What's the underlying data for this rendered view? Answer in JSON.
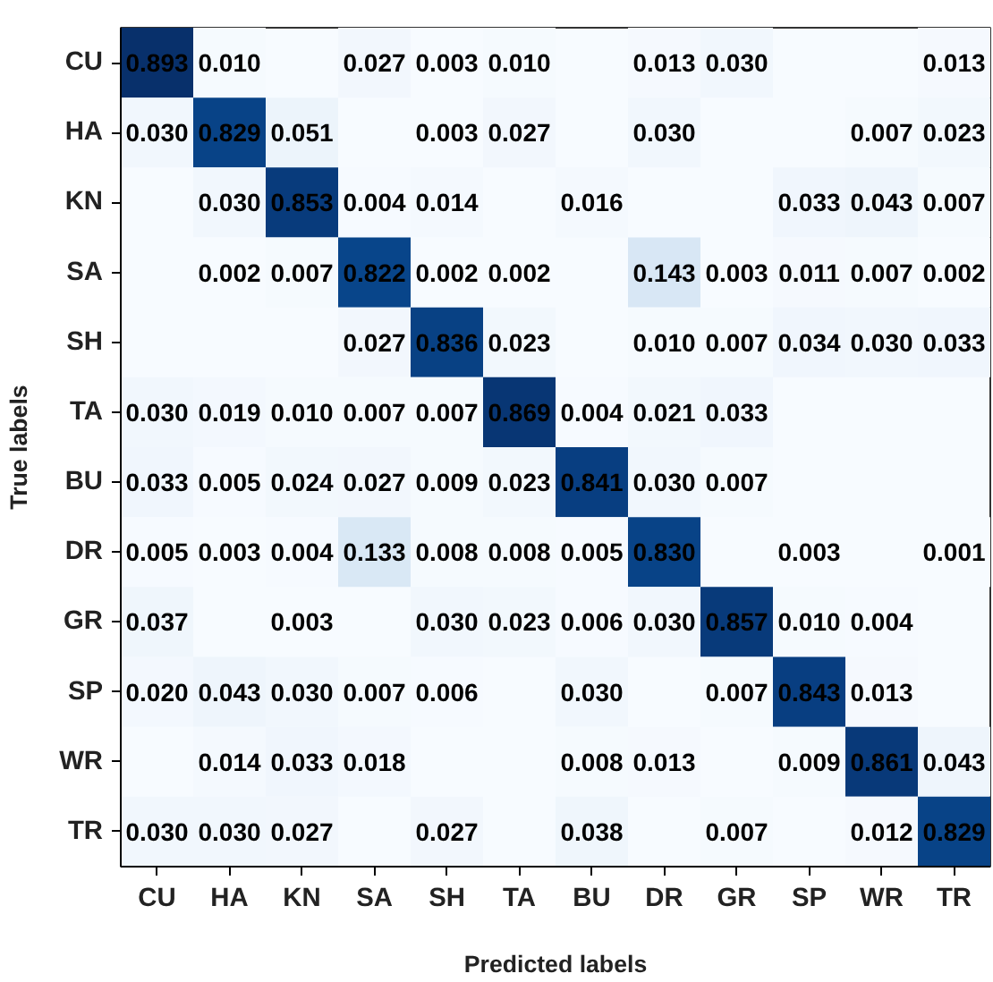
{
  "chart_data": {
    "type": "heatmap",
    "xlabel": "Predicted labels",
    "ylabel": "True labels",
    "categories": [
      "CU",
      "HA",
      "KN",
      "SA",
      "SH",
      "TA",
      "BU",
      "DR",
      "GR",
      "SP",
      "WR",
      "TR"
    ],
    "y_categories": [
      "CU",
      "HA",
      "KN",
      "SA",
      "SH",
      "TA",
      "BU",
      "DR",
      "GR",
      "SP",
      "WR",
      "TR"
    ],
    "cells": [
      [
        0.893,
        0.01,
        null,
        0.027,
        0.003,
        0.01,
        null,
        0.013,
        0.03,
        null,
        null,
        0.013
      ],
      [
        0.03,
        0.829,
        0.051,
        null,
        0.003,
        0.027,
        null,
        0.03,
        null,
        null,
        0.007,
        0.023
      ],
      [
        null,
        0.03,
        0.853,
        0.004,
        0.014,
        null,
        0.016,
        null,
        null,
        0.033,
        0.043,
        0.007
      ],
      [
        null,
        0.002,
        0.007,
        0.822,
        0.002,
        0.002,
        null,
        0.143,
        0.003,
        0.011,
        0.007,
        0.002
      ],
      [
        null,
        null,
        null,
        0.027,
        0.836,
        0.023,
        null,
        0.01,
        0.007,
        0.034,
        0.03,
        0.033
      ],
      [
        0.03,
        0.019,
        0.01,
        0.007,
        0.007,
        0.869,
        0.004,
        0.021,
        0.033,
        null,
        null,
        null
      ],
      [
        0.033,
        0.005,
        0.024,
        0.027,
        0.009,
        0.023,
        0.841,
        0.03,
        0.007,
        null,
        null,
        null
      ],
      [
        0.005,
        0.003,
        0.004,
        0.133,
        0.008,
        0.008,
        0.005,
        0.83,
        null,
        0.003,
        null,
        0.001
      ],
      [
        0.037,
        null,
        0.003,
        null,
        0.03,
        0.023,
        0.006,
        0.03,
        0.857,
        0.01,
        0.004,
        null
      ],
      [
        0.02,
        0.043,
        0.03,
        0.007,
        0.006,
        null,
        0.03,
        null,
        0.007,
        0.843,
        0.013,
        null
      ],
      [
        null,
        0.014,
        0.033,
        0.018,
        null,
        null,
        0.008,
        0.013,
        null,
        0.009,
        0.861,
        0.043
      ],
      [
        0.03,
        0.03,
        0.027,
        null,
        0.027,
        null,
        0.038,
        null,
        0.007,
        null,
        0.012,
        0.829
      ]
    ],
    "cell_labels": [
      [
        "0.893",
        "0.010",
        null,
        "0.027",
        "0.003",
        "0.010",
        null,
        "0.013",
        "0.030",
        null,
        null,
        "0.013"
      ],
      [
        "0.030",
        "0.829",
        "0.051",
        null,
        "0.003",
        "0.027",
        null,
        "0.030",
        null,
        null,
        "0.007",
        "0.023"
      ],
      [
        null,
        "0.030",
        "0.853",
        "0.004",
        "0.014",
        null,
        "0.016",
        null,
        null,
        "0.033",
        "0.043",
        "0.007"
      ],
      [
        null,
        "0.002",
        "0.007",
        "0.822",
        "0.002",
        "0.002",
        null,
        "0.143",
        "0.003",
        "0.011",
        "0.007",
        "0.002"
      ],
      [
        null,
        null,
        null,
        "0.027",
        "0.836",
        "0.023",
        null,
        "0.010",
        "0.007",
        "0.034",
        "0.030",
        "0.033"
      ],
      [
        "0.030",
        "0.019",
        "0.010",
        "0.007",
        "0.007",
        "0.869",
        "0.004",
        "0.021",
        "0.033",
        null,
        null,
        null
      ],
      [
        "0.033",
        "0.005",
        "0.024",
        "0.027",
        "0.009",
        "0.023",
        "0.841",
        "0.030",
        "0.007",
        null,
        null,
        null
      ],
      [
        "0.005",
        "0.003",
        "0.004",
        "0.133",
        "0.008",
        "0.008",
        "0.005",
        "0.830",
        null,
        "0.003",
        null,
        "0.001"
      ],
      [
        "0.037",
        null,
        "0.003",
        null,
        "0.030",
        "0.023",
        "0.006",
        "0.030",
        "0.857",
        "0.010",
        "0.004",
        null
      ],
      [
        "0.020",
        "0.043",
        "0.030",
        "0.007",
        "0.006",
        null,
        "0.030",
        null,
        "0.007",
        "0.843",
        "0.013",
        null
      ],
      [
        null,
        "0.014",
        "0.033",
        "0.018",
        null,
        null,
        "0.008",
        "0.013",
        null,
        "0.009",
        "0.861",
        "0.043"
      ],
      [
        "0.030",
        "0.030",
        "0.027",
        null,
        "0.027",
        null,
        "0.038",
        null,
        "0.007",
        null,
        "0.012",
        "0.829"
      ]
    ]
  }
}
